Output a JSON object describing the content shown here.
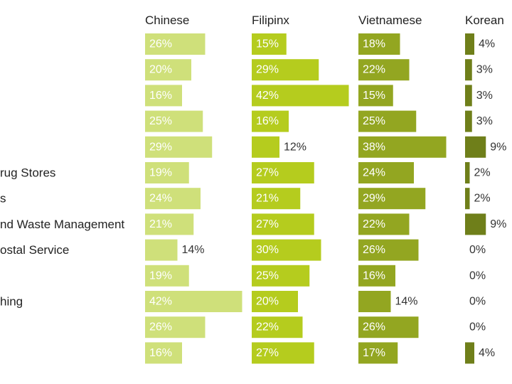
{
  "chart_data": {
    "type": "bar",
    "title": "",
    "categories": [
      "",
      "",
      "",
      "",
      "",
      "rug Stores",
      "s",
      "nd Waste Management",
      "ostal Service",
      "",
      "hing",
      "",
      ""
    ],
    "series": [
      {
        "name": "Chinese",
        "color": "#cfe07a",
        "values": [
          26,
          20,
          16,
          25,
          29,
          19,
          24,
          21,
          14,
          19,
          42,
          26,
          16
        ],
        "labels": [
          "26%",
          "20%",
          "16%",
          "25%",
          "29%",
          "19%",
          "24%",
          "21%",
          "14%",
          "19%",
          "42%",
          "26%",
          "16%"
        ]
      },
      {
        "name": "Filipinx",
        "color": "#b5cc1e",
        "values": [
          15,
          29,
          42,
          16,
          12,
          27,
          21,
          27,
          30,
          25,
          20,
          22,
          27
        ],
        "labels": [
          "15%",
          "29%",
          "42%",
          "16%",
          "12%",
          "27%",
          "21%",
          "27%",
          "30%",
          "25%",
          "20%",
          "22%",
          "27%"
        ]
      },
      {
        "name": "Vietnamese",
        "color": "#93a621",
        "values": [
          18,
          22,
          15,
          25,
          38,
          24,
          29,
          22,
          26,
          16,
          14,
          26,
          17
        ],
        "labels": [
          "18%",
          "22%",
          "15%",
          "25%",
          "38%",
          "24%",
          "29%",
          "22%",
          "26%",
          "16%",
          "14%",
          "26%",
          "17%"
        ]
      },
      {
        "name": "Korean",
        "color": "#6f7f1a",
        "values": [
          4,
          3,
          3,
          3,
          9,
          2,
          2,
          9,
          0,
          0,
          0,
          0,
          4
        ],
        "labels": [
          "4%",
          "3%",
          "3%",
          "3%",
          "9%",
          "2%",
          "2%",
          "9%",
          "0%",
          "0%",
          "0%",
          "0%",
          "4%"
        ]
      }
    ],
    "xlim": [
      0,
      100
    ],
    "grid": false,
    "legend": "none"
  }
}
